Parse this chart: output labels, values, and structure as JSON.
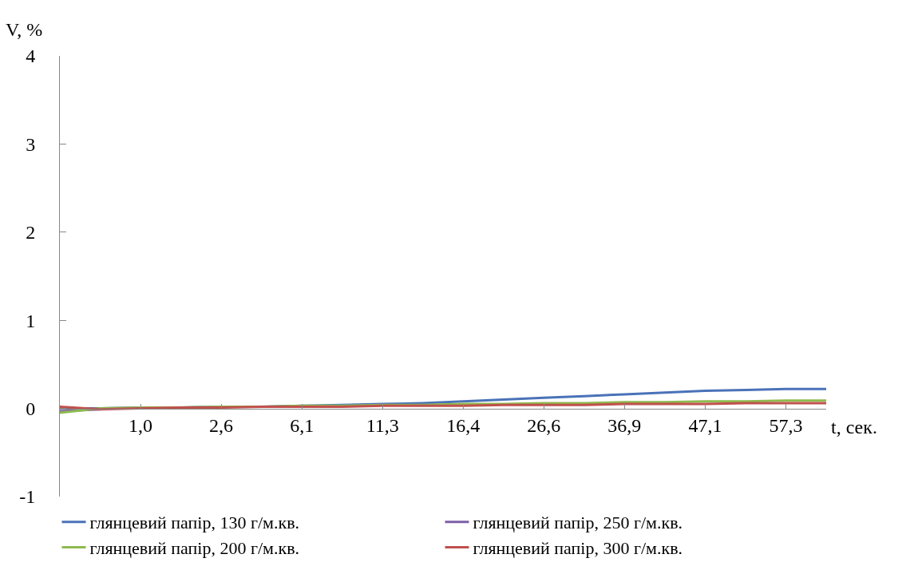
{
  "chart_data": {
    "type": "line",
    "xlabel": "t, сек.",
    "ylabel": "V, %",
    "categories": [
      null,
      null,
      "1,0",
      null,
      "2,6",
      null,
      "6,1",
      null,
      "11,3",
      null,
      "16,4",
      null,
      "26,6",
      null,
      "36,9",
      null,
      "47,1",
      null,
      "57,3",
      null
    ],
    "ylim": [
      -1,
      4
    ],
    "yticks": [
      -1,
      0,
      1,
      2,
      3,
      4
    ],
    "legend": "bottom",
    "marker": "none",
    "line_style": "solid",
    "series": [
      {
        "name": "глянцевий папір, 130 г/м.кв.",
        "color": "#4a72b8",
        "values": [
          0,
          0,
          0.01,
          0.01,
          0.02,
          0.02,
          0.03,
          0.04,
          0.05,
          0.06,
          0.08,
          0.1,
          0.12,
          0.14,
          0.16,
          0.18,
          0.2,
          0.21,
          0.22,
          0.22
        ]
      },
      {
        "name": "глянцевий папір, 250 г/м.кв.",
        "color": "#7d5fa6",
        "values": [
          -0.03,
          -0.01,
          null,
          null,
          null,
          null,
          null,
          null,
          null,
          null,
          null,
          null,
          null,
          null,
          null,
          null,
          null,
          null,
          null,
          null
        ]
      },
      {
        "name": "глянцевий папір, 200 г/м.кв.",
        "color": "#8fba4f",
        "values": [
          -0.05,
          0,
          0.01,
          0.01,
          0.02,
          0.02,
          0.03,
          0.03,
          0.04,
          0.04,
          0.05,
          0.05,
          0.06,
          0.06,
          0.07,
          0.07,
          0.08,
          0.08,
          0.09,
          0.09
        ]
      },
      {
        "name": "глянцевий папір, 300 г/м.кв.",
        "color": "#c0504d",
        "values": [
          0.02,
          -0.01,
          0,
          0.01,
          0.01,
          0.02,
          0.02,
          0.02,
          0.03,
          0.03,
          0.03,
          0.04,
          0.04,
          0.04,
          0.05,
          0.05,
          0.05,
          0.06,
          0.06,
          0.06
        ]
      }
    ]
  }
}
